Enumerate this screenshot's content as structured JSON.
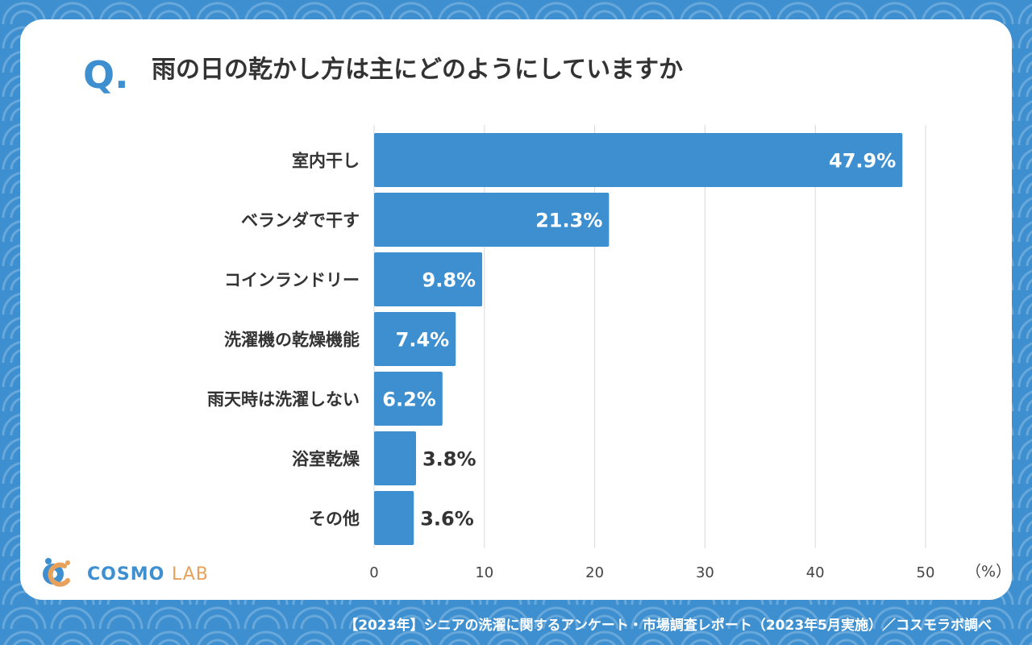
{
  "chart_data": {
    "type": "bar",
    "orientation": "horizontal",
    "title": "雨の日の乾かし方は主にどのようにしていますか",
    "question_mark": "Q.",
    "categories": [
      "室内干し",
      "ベランダで干す",
      "コインランドリー",
      "洗濯機の乾燥機能",
      "雨天時は洗濯しない",
      "浴室乾燥",
      "その他"
    ],
    "values": [
      47.9,
      21.3,
      9.8,
      7.4,
      6.2,
      3.8,
      3.6
    ],
    "value_labels": [
      "47.9%",
      "21.3%",
      "9.8%",
      "7.4%",
      "6.2%",
      "3.8%",
      "3.6%"
    ],
    "x_ticks": [
      "0",
      "10",
      "20",
      "30",
      "40",
      "50"
    ],
    "xlim": [
      0,
      50
    ],
    "unit_label": "（%）",
    "grid": true,
    "bar_color": "#3d8fd0"
  },
  "brand": {
    "logo_main": "COSMO",
    "logo_sub": "LAB",
    "logo_colors": [
      "#3d8fd0",
      "#e8a15a"
    ]
  },
  "source": "【2023年】シニアの洗濯に関するアンケート・市場調査レポート（2023年5月実施）／コスモラボ調べ"
}
